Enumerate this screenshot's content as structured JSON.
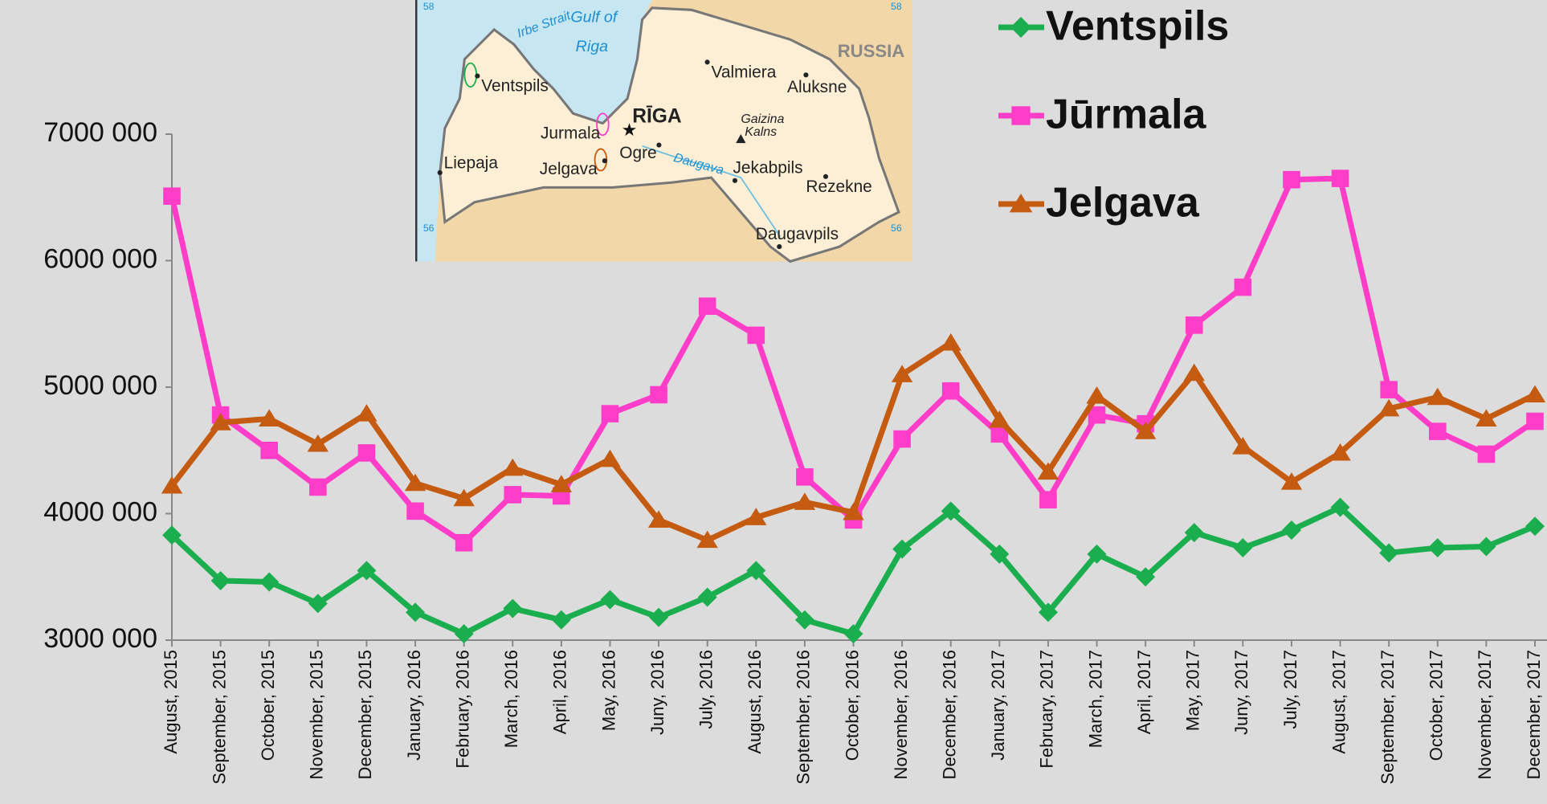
{
  "chart_data": {
    "type": "line",
    "categories": [
      "August, 2015",
      "September, 2015",
      "October, 2015",
      "November, 2015",
      "December, 2015",
      "January, 2016",
      "February, 2016",
      "March, 2016",
      "April, 2016",
      "May, 2016",
      "Juny, 2016",
      "July, 2016",
      "August, 2016",
      "September, 2016",
      "October, 2016",
      "November, 2016",
      "December, 2016",
      "January, 2017",
      "February, 2017",
      "March, 2017",
      "April, 2017",
      "May, 2017",
      "Juny, 2017",
      "July, 2017",
      "August, 2017",
      "September, 2017",
      "October, 2017",
      "November, 2017",
      "December, 2017"
    ],
    "series": [
      {
        "name": "Ventspils",
        "color": "#1aae4e",
        "marker": "diamond",
        "values": [
          3830000,
          3470000,
          3460000,
          3290000,
          3550000,
          3220000,
          3050000,
          3250000,
          3160000,
          3320000,
          3180000,
          3340000,
          3550000,
          3160000,
          3050000,
          3720000,
          4020000,
          3680000,
          3220000,
          3680000,
          3500000,
          3850000,
          3730000,
          3870000,
          4050000,
          3690000,
          3730000,
          3740000,
          3900000
        ]
      },
      {
        "name": "Jūrmala",
        "color": "#ff3dc8",
        "marker": "square",
        "values": [
          6510000,
          4780000,
          4500000,
          4210000,
          4480000,
          4020000,
          3770000,
          4150000,
          4140000,
          4790000,
          4940000,
          5640000,
          5410000,
          4290000,
          3950000,
          4590000,
          4970000,
          4630000,
          4110000,
          4780000,
          4710000,
          5490000,
          5790000,
          6640000,
          6650000,
          4980000,
          4650000,
          4470000,
          4730000
        ]
      },
      {
        "name": "Jelgava",
        "color": "#c55a11",
        "marker": "triangle",
        "values": [
          4220000,
          4720000,
          4750000,
          4550000,
          4790000,
          4240000,
          4120000,
          4360000,
          4230000,
          4430000,
          3950000,
          3790000,
          3970000,
          4090000,
          4010000,
          5100000,
          5350000,
          4740000,
          4330000,
          4930000,
          4650000,
          5110000,
          4530000,
          4250000,
          4480000,
          4830000,
          4920000,
          4750000,
          4940000
        ]
      }
    ],
    "ylim": [
      3000000,
      7000000
    ],
    "yticks": [
      {
        "value": 3000000,
        "label": "3000 000"
      },
      {
        "value": 4000000,
        "label": "4000 000"
      },
      {
        "value": 5000000,
        "label": "5000 000"
      },
      {
        "value": 6000000,
        "label": "6000 000"
      },
      {
        "value": 7000000,
        "label": "7000 000"
      }
    ],
    "grid": false,
    "legend": "upper right"
  },
  "inset_map": {
    "labels": [
      "58",
      "58",
      "Irbe Strait",
      "Gulf of",
      "Riga",
      "Ventspils",
      "RĪGA",
      "Jurmala",
      "Ogre",
      "Liepaja",
      "Jelgava",
      "Daugava",
      "Valmiera",
      "Aluksne",
      "RUSSIA",
      "Gaizina",
      "Kalns",
      "Jekabpils",
      "Rezekne",
      "Daugavpils",
      "56",
      "56"
    ]
  }
}
